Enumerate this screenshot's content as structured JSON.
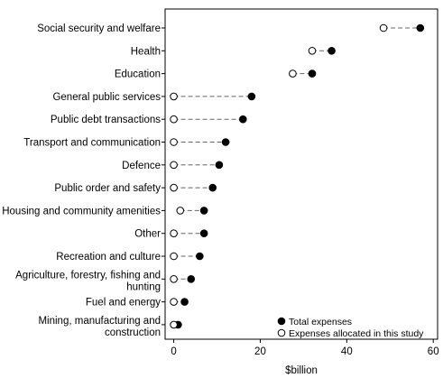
{
  "chart_data": {
    "type": "dot",
    "categories": [
      "Social security and welfare",
      "Health",
      "Education",
      "General public services",
      "Public debt transactions",
      "Transport and communication",
      "Defence",
      "Public order and safety",
      "Housing and community amenities",
      "Other",
      "Recreation and culture",
      "Agriculture, forestry, fishing and hunting",
      "Fuel and energy",
      "Mining, manufacturing and construction"
    ],
    "series": [
      {
        "name": "Total expenses",
        "marker": "filled-circle",
        "values": [
          57,
          36.5,
          32,
          18,
          16,
          12,
          10.5,
          9,
          7,
          7,
          6,
          4,
          2.5,
          1
        ]
      },
      {
        "name": "Expenses allocated in this study",
        "marker": "open-circle",
        "values": [
          48.5,
          32,
          27.5,
          0,
          0,
          0,
          0,
          0,
          1.5,
          0,
          0,
          0,
          0,
          0
        ]
      }
    ],
    "xlabel": "$billion",
    "xticks": [
      0,
      20,
      40,
      60
    ],
    "xlim": [
      -2,
      61
    ],
    "legend_position": "bottom-right",
    "connector_style": "dashed"
  }
}
